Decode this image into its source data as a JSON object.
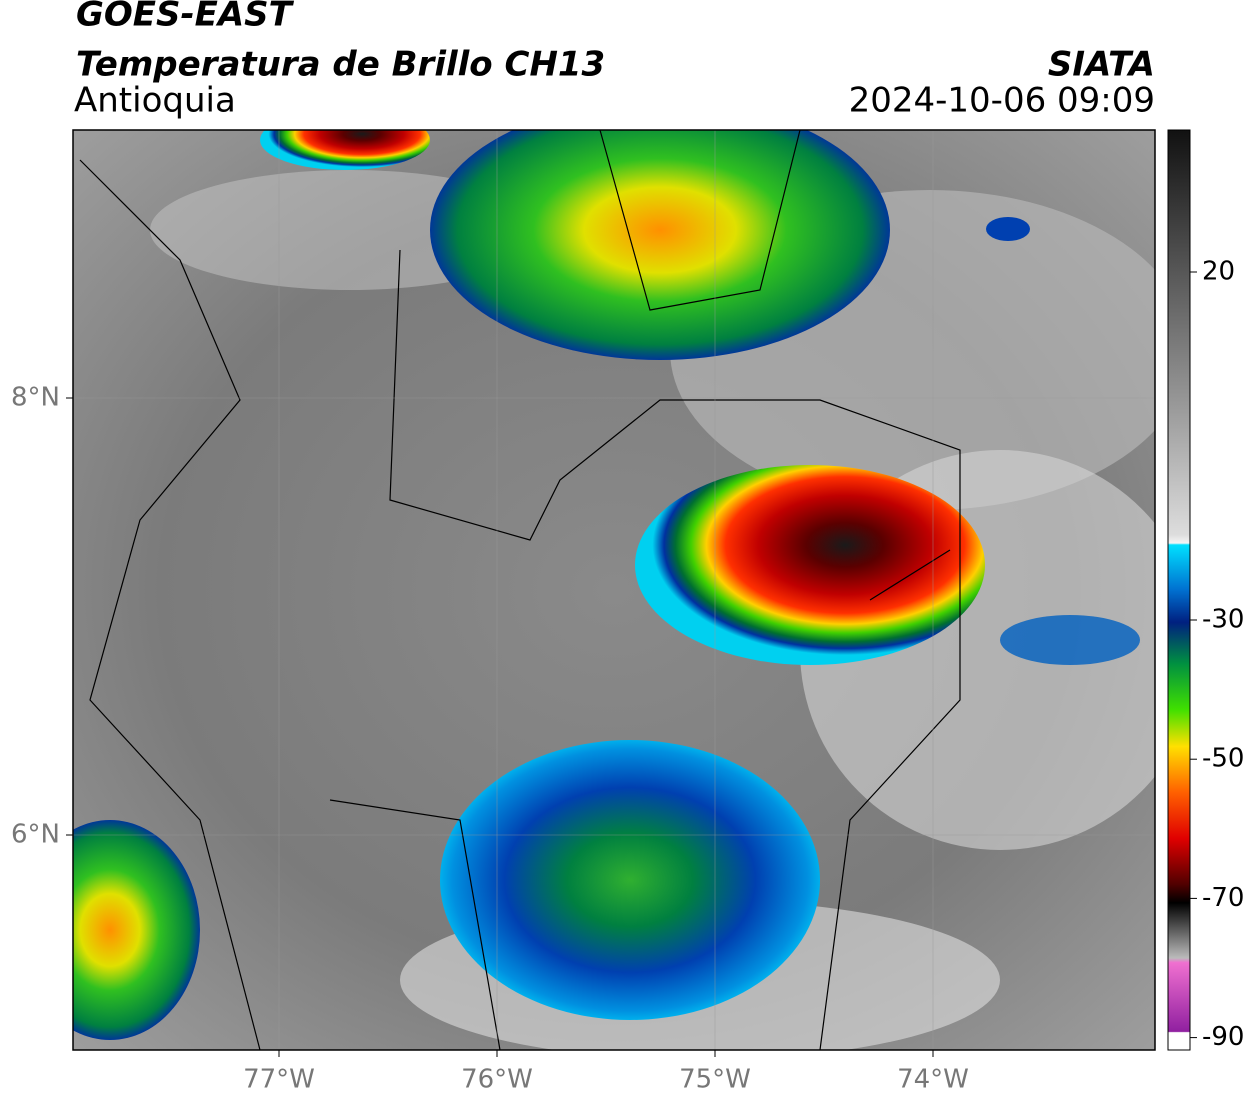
{
  "header": {
    "title": "GOES-EAST",
    "subtitle": "Temperatura de Brillo CH13",
    "region": "Antioquia",
    "source": "SIATA",
    "datetime": "2024-10-06 09:09"
  },
  "map": {
    "lat_ticks": [
      {
        "value": 8,
        "label": "8°N"
      },
      {
        "value": 6,
        "label": "6°N"
      }
    ],
    "lon_ticks": [
      {
        "value": -77,
        "label": "77°W"
      },
      {
        "value": -76,
        "label": "76°W"
      },
      {
        "value": -75,
        "label": "75°W"
      },
      {
        "value": -74,
        "label": "74°W"
      }
    ]
  },
  "colorbar": {
    "ticks": [
      20,
      -30,
      -50,
      -70,
      -90
    ]
  }
}
